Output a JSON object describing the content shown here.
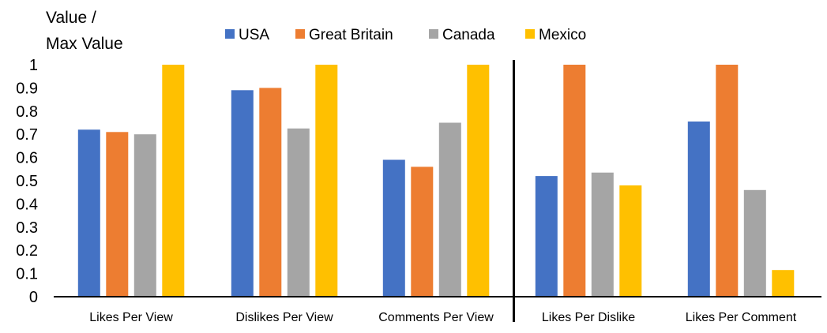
{
  "chart_data": {
    "type": "bar",
    "ylabel_lines": [
      "Value /",
      "Max Value"
    ],
    "categories": [
      "Likes Per View",
      "Dislikes Per View",
      "Comments Per View",
      "Likes Per Dislike",
      "Likes Per Comment"
    ],
    "series": [
      {
        "name": "USA",
        "color": "#4472C4",
        "values": [
          0.72,
          0.89,
          0.59,
          0.52,
          0.755
        ]
      },
      {
        "name": "Great Britain",
        "color": "#ED7D31",
        "values": [
          0.71,
          0.9,
          0.56,
          1.0,
          1.0
        ]
      },
      {
        "name": "Canada",
        "color": "#A5A5A5",
        "values": [
          0.7,
          0.725,
          0.75,
          0.535,
          0.46
        ]
      },
      {
        "name": "Mexico",
        "color": "#FFC000",
        "values": [
          1.0,
          1.0,
          1.0,
          0.48,
          0.115
        ]
      }
    ],
    "ylim": [
      0,
      1
    ],
    "yticks": [
      "0",
      "0.1",
      "0.2",
      "0.3",
      "0.4",
      "0.5",
      "0.6",
      "0.7",
      "0.8",
      "0.9",
      "1"
    ],
    "grid": false,
    "legend_position": "top",
    "divider_after_category": 3
  }
}
